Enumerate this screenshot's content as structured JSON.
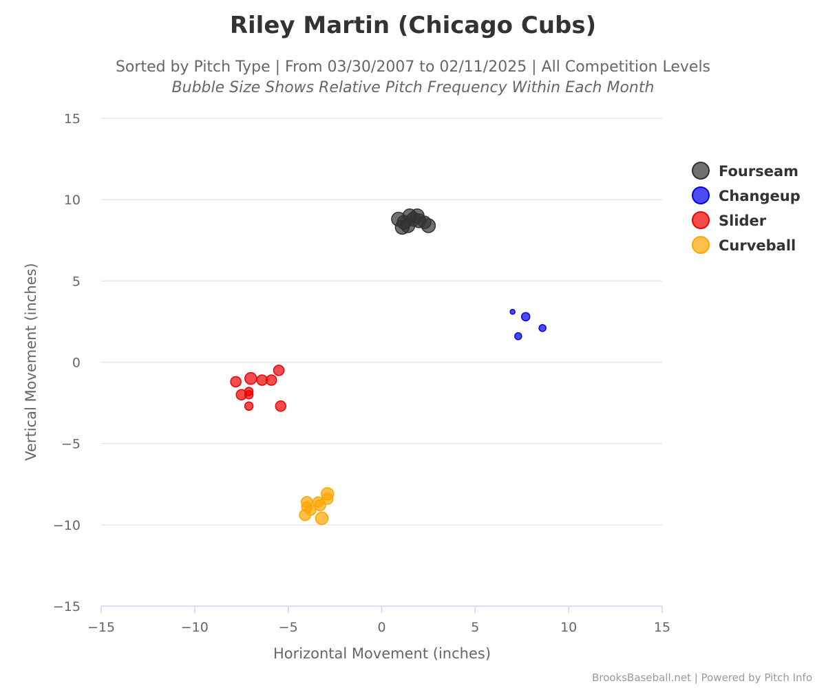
{
  "chart_data": {
    "type": "scatter",
    "title": "Riley Martin (Chicago Cubs)",
    "subtitle": "Sorted by Pitch Type | From 03/30/2007 to 02/11/2025 | All Competition Levels",
    "subtitle2": "Bubble Size Shows Relative Pitch Frequency Within Each Month",
    "xlabel": "Horizontal Movement (inches)",
    "ylabel": "Vertical Movement (inches)",
    "xlim": [
      -15,
      15
    ],
    "ylim": [
      -15,
      15
    ],
    "xticks": [
      -15,
      -10,
      -5,
      0,
      5,
      10,
      15
    ],
    "yticks": [
      15,
      10,
      5,
      0,
      -5,
      -10,
      -15
    ],
    "xtick_labels": [
      "−15",
      "−10",
      "−5",
      "0",
      "5",
      "10",
      "15"
    ],
    "ytick_labels": [
      "15",
      "10",
      "5",
      "0",
      "−5",
      "−10",
      "−15"
    ],
    "grid": true,
    "legend_position": "right",
    "credit": "BrooksBaseball.net | Powered by Pitch Info",
    "series": [
      {
        "name": "Fourseam",
        "color": "#333333",
        "points": [
          {
            "x": 0.9,
            "y": 8.8,
            "size": 1.0
          },
          {
            "x": 1.1,
            "y": 8.3,
            "size": 1.0
          },
          {
            "x": 1.2,
            "y": 8.6,
            "size": 1.0
          },
          {
            "x": 1.4,
            "y": 8.4,
            "size": 1.0
          },
          {
            "x": 1.5,
            "y": 9.0,
            "size": 1.0
          },
          {
            "x": 1.7,
            "y": 8.8,
            "size": 1.0
          },
          {
            "x": 1.9,
            "y": 9.0,
            "size": 1.0
          },
          {
            "x": 2.0,
            "y": 8.7,
            "size": 1.0
          },
          {
            "x": 2.3,
            "y": 8.6,
            "size": 0.9
          },
          {
            "x": 2.5,
            "y": 8.4,
            "size": 1.0
          }
        ]
      },
      {
        "name": "Changeup",
        "color": "#0000ee",
        "points": [
          {
            "x": 7.0,
            "y": 3.1,
            "size": 0.35
          },
          {
            "x": 7.7,
            "y": 2.8,
            "size": 0.6
          },
          {
            "x": 7.3,
            "y": 1.6,
            "size": 0.5
          },
          {
            "x": 8.6,
            "y": 2.1,
            "size": 0.5
          }
        ]
      },
      {
        "name": "Slider",
        "color": "#ee0000",
        "points": [
          {
            "x": -5.5,
            "y": -0.5,
            "size": 0.75
          },
          {
            "x": -7.0,
            "y": -1.0,
            "size": 0.85
          },
          {
            "x": -6.4,
            "y": -1.1,
            "size": 0.75
          },
          {
            "x": -5.9,
            "y": -1.1,
            "size": 0.75
          },
          {
            "x": -7.8,
            "y": -1.2,
            "size": 0.75
          },
          {
            "x": -7.1,
            "y": -1.8,
            "size": 0.6
          },
          {
            "x": -7.1,
            "y": -2.0,
            "size": 0.6
          },
          {
            "x": -7.5,
            "y": -2.0,
            "size": 0.75
          },
          {
            "x": -7.1,
            "y": -2.7,
            "size": 0.6
          },
          {
            "x": -5.4,
            "y": -2.7,
            "size": 0.75
          }
        ]
      },
      {
        "name": "Curveball",
        "color": "#ffa500",
        "points": [
          {
            "x": -2.9,
            "y": -8.1,
            "size": 0.9
          },
          {
            "x": -2.9,
            "y": -8.4,
            "size": 0.8
          },
          {
            "x": -4.0,
            "y": -8.6,
            "size": 0.8
          },
          {
            "x": -3.4,
            "y": -8.6,
            "size": 0.75
          },
          {
            "x": -3.3,
            "y": -8.8,
            "size": 0.8
          },
          {
            "x": -4.0,
            "y": -8.9,
            "size": 0.75
          },
          {
            "x": -3.8,
            "y": -9.1,
            "size": 0.75
          },
          {
            "x": -4.1,
            "y": -9.4,
            "size": 0.8
          },
          {
            "x": -3.2,
            "y": -9.6,
            "size": 0.9
          }
        ]
      }
    ]
  }
}
